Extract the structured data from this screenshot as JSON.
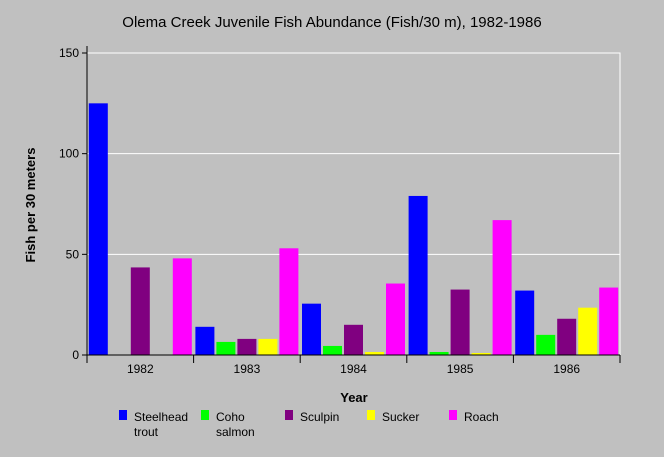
{
  "chart_data": {
    "type": "bar",
    "title": "Olema Creek Juvenile Fish Abundance (Fish/30 m), 1982-1986",
    "xlabel": "Year",
    "ylabel": "Fish per 30 meters",
    "categories": [
      "1982",
      "1983",
      "1984",
      "1985",
      "1986"
    ],
    "ylim": [
      0,
      150
    ],
    "yticks": [
      0,
      50,
      100,
      150
    ],
    "grid": true,
    "legend_position": "bottom",
    "series": [
      {
        "name": "Steelhead trout",
        "legend_lines": [
          "Steelhead",
          "trout"
        ],
        "color": "#0000ff",
        "values": [
          125,
          14,
          25.5,
          79,
          32
        ]
      },
      {
        "name": "Coho salmon",
        "legend_lines": [
          "Coho",
          "salmon"
        ],
        "color": "#00ff00",
        "values": [
          0,
          6.5,
          4.5,
          1.5,
          10
        ]
      },
      {
        "name": "Sculpin",
        "legend_lines": [
          "Sculpin"
        ],
        "color": "#800080",
        "values": [
          43.5,
          8,
          15,
          32.5,
          18
        ]
      },
      {
        "name": "Sucker",
        "legend_lines": [
          "Sucker"
        ],
        "color": "#ffff00",
        "values": [
          0,
          8,
          1.5,
          1,
          23.5
        ]
      },
      {
        "name": "Roach",
        "legend_lines": [
          "Roach"
        ],
        "color": "#ff00ff",
        "values": [
          48,
          53,
          35.5,
          67,
          33.5
        ]
      }
    ]
  }
}
